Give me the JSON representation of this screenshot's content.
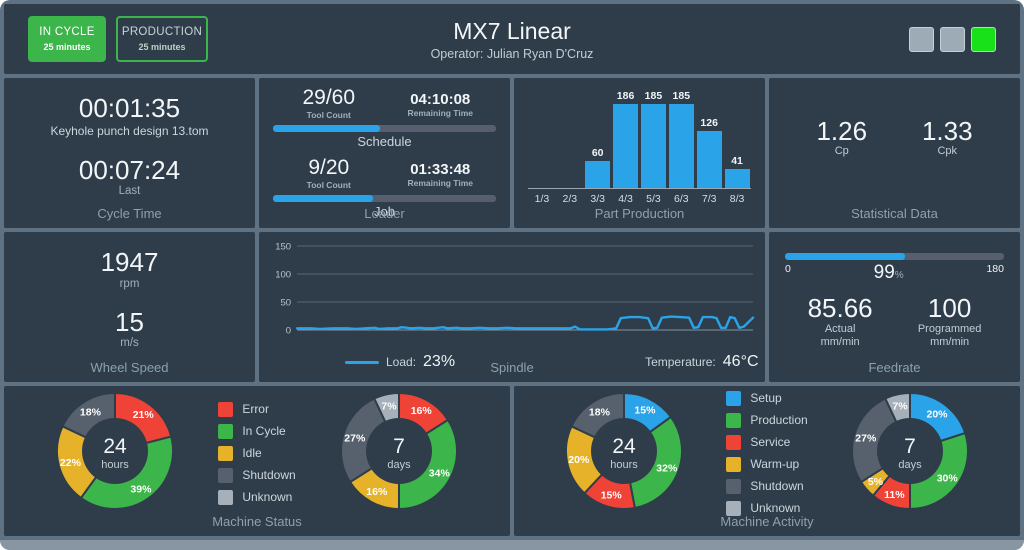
{
  "header": {
    "status_button": {
      "label": "IN CYCLE",
      "sublabel": "25 minutes"
    },
    "mode_button": {
      "label": "PRODUCTION",
      "sublabel": "25 minutes"
    },
    "title": "MX7 Linear",
    "operator": "Operator: Julian Ryan D'Cruz",
    "stack_lights": [
      {
        "name": "light-off-1",
        "color": "#9dabb6"
      },
      {
        "name": "light-off-2",
        "color": "#9dabb6"
      },
      {
        "name": "light-green",
        "color": "#19e119"
      }
    ]
  },
  "colors": {
    "accent_blue": "#2aa3e8",
    "green": "#3cb54a",
    "red": "#ef4337",
    "yellow": "#e5b22a",
    "slate": "#56616d",
    "light_gray": "#a5b0ba",
    "panel_bg": "#2f3d4a",
    "track": "#575f6e"
  },
  "cycle_time": {
    "title": "Cycle Time",
    "current": "00:01:35",
    "program": "Keyhole punch design 13.tom",
    "last": "00:07:24",
    "last_label": "Last"
  },
  "loader": {
    "title": "Loader",
    "tool_count_label": "Tool Count",
    "remaining_label": "Remaining Time",
    "schedule": {
      "tool_count": "29/60",
      "remaining": "04:10:08",
      "progress_pct": 48,
      "label": "Schedule"
    },
    "job": {
      "tool_count": "9/20",
      "remaining": "01:33:48",
      "progress_pct": 45,
      "label": "Job"
    }
  },
  "part_production": {
    "title": "Part Production",
    "chart": {
      "type": "bar",
      "categories": [
        "1/3",
        "2/3",
        "3/3",
        "4/3",
        "5/3",
        "6/3",
        "7/3",
        "8/3"
      ],
      "values": [
        0,
        0,
        60,
        186,
        185,
        185,
        126,
        41
      ],
      "ymax": 186,
      "bar_color": "#2aa3e8"
    }
  },
  "statistical_data": {
    "title": "Statistical Data",
    "cp": "1.26",
    "cp_label": "Cp",
    "cpk": "1.33",
    "cpk_label": "Cpk"
  },
  "wheel_speed": {
    "title": "Wheel Speed",
    "rpm": "1947",
    "rpm_label": "rpm",
    "speed": "15",
    "speed_label": "m/s"
  },
  "spindle": {
    "title": "Spindle",
    "legend": {
      "load_label": "Load:",
      "load_value": "23%",
      "temp_label": "Temperature:",
      "temp_value": "46°C"
    },
    "chart": {
      "type": "line",
      "ylim": [
        0,
        150
      ],
      "yticks": [
        0,
        50,
        100,
        150
      ],
      "line_color": "#2aa3e8",
      "points": [
        [
          0,
          3
        ],
        [
          3,
          3
        ],
        [
          5,
          2
        ],
        [
          8,
          3
        ],
        [
          11,
          3
        ],
        [
          13,
          2
        ],
        [
          15,
          3
        ],
        [
          17,
          4
        ],
        [
          18,
          2
        ],
        [
          20,
          3
        ],
        [
          22,
          3
        ],
        [
          23,
          5
        ],
        [
          25,
          3
        ],
        [
          27,
          4
        ],
        [
          28,
          3
        ],
        [
          30,
          3
        ],
        [
          32,
          5
        ],
        [
          33,
          3
        ],
        [
          35,
          4
        ],
        [
          36,
          3
        ],
        [
          38,
          3
        ],
        [
          40,
          4
        ],
        [
          42,
          3
        ],
        [
          44,
          3
        ],
        [
          46,
          4
        ],
        [
          48,
          3
        ],
        [
          50,
          3
        ],
        [
          52,
          3
        ],
        [
          54,
          3
        ],
        [
          56,
          3
        ],
        [
          58,
          3
        ],
        [
          60,
          3
        ],
        [
          61,
          6
        ],
        [
          62,
          1
        ],
        [
          64,
          1
        ],
        [
          66,
          1
        ],
        [
          68,
          1
        ],
        [
          69,
          2
        ],
        [
          70,
          3
        ],
        [
          71,
          21
        ],
        [
          73,
          23
        ],
        [
          75,
          23
        ],
        [
          77,
          21
        ],
        [
          78,
          3
        ],
        [
          79,
          4
        ],
        [
          80,
          22
        ],
        [
          82,
          24
        ],
        [
          84,
          23
        ],
        [
          86,
          22
        ],
        [
          87,
          4
        ],
        [
          88,
          5
        ],
        [
          89,
          23
        ],
        [
          91,
          23
        ],
        [
          92,
          21
        ],
        [
          93,
          4
        ],
        [
          94,
          4
        ],
        [
          95,
          23
        ],
        [
          96,
          21
        ],
        [
          97,
          4
        ],
        [
          98,
          6
        ],
        [
          100,
          22
        ]
      ]
    }
  },
  "feedrate": {
    "title": "Feedrate",
    "scale_min": "0",
    "scale_max": "180",
    "percent": "99",
    "percent_unit": "%",
    "progress_pct": 55,
    "actual": "85.66",
    "actual_label": "Actual",
    "actual_unit": "mm/min",
    "programmed": "100",
    "programmed_label": "Programmed",
    "programmed_unit": "mm/min"
  },
  "machine_status": {
    "title": "Machine Status",
    "legend": [
      {
        "label": "Error",
        "color": "#ef4337"
      },
      {
        "label": "In Cycle",
        "color": "#3cb54a"
      },
      {
        "label": "Idle",
        "color": "#e5b22a"
      },
      {
        "label": "Shutdown",
        "color": "#56616d"
      },
      {
        "label": "Unknown",
        "color": "#a5b0ba"
      }
    ],
    "donut_24h": {
      "type": "donut",
      "center_value": "24",
      "center_label": "hours",
      "slices": [
        {
          "label": "Error",
          "pct": 21,
          "color": "#ef4337"
        },
        {
          "label": "In Cycle",
          "pct": 39,
          "color": "#3cb54a"
        },
        {
          "label": "Idle",
          "pct": 22,
          "color": "#e5b22a"
        },
        {
          "label": "Shutdown",
          "pct": 18,
          "color": "#56616d"
        }
      ]
    },
    "donut_7d": {
      "type": "donut",
      "center_value": "7",
      "center_label": "days",
      "slices": [
        {
          "label": "Error",
          "pct": 16,
          "color": "#ef4337"
        },
        {
          "label": "In Cycle",
          "pct": 34,
          "color": "#3cb54a"
        },
        {
          "label": "Idle",
          "pct": 16,
          "color": "#e5b22a"
        },
        {
          "label": "Shutdown",
          "pct": 27,
          "color": "#56616d"
        },
        {
          "label": "Unknown",
          "pct": 7,
          "color": "#a5b0ba"
        }
      ]
    }
  },
  "machine_activity": {
    "title": "Machine Activity",
    "legend": [
      {
        "label": "Setup",
        "color": "#2aa3e8"
      },
      {
        "label": "Production",
        "color": "#3cb54a"
      },
      {
        "label": "Service",
        "color": "#ef4337"
      },
      {
        "label": "Warm-up",
        "color": "#e5b22a"
      },
      {
        "label": "Shutdown",
        "color": "#56616d"
      },
      {
        "label": "Unknown",
        "color": "#a5b0ba"
      }
    ],
    "donut_24h": {
      "type": "donut",
      "center_value": "24",
      "center_label": "hours",
      "slices": [
        {
          "label": "Setup",
          "pct": 15,
          "color": "#2aa3e8"
        },
        {
          "label": "Production",
          "pct": 32,
          "color": "#3cb54a"
        },
        {
          "label": "Service",
          "pct": 15,
          "color": "#ef4337"
        },
        {
          "label": "Warm-up",
          "pct": 20,
          "color": "#e5b22a"
        },
        {
          "label": "Shutdown",
          "pct": 18,
          "color": "#56616d"
        }
      ]
    },
    "donut_7d": {
      "type": "donut",
      "center_value": "7",
      "center_label": "days",
      "slices": [
        {
          "label": "Setup",
          "pct": 20,
          "color": "#2aa3e8"
        },
        {
          "label": "Production",
          "pct": 30,
          "color": "#3cb54a"
        },
        {
          "label": "Service",
          "pct": 11,
          "color": "#ef4337"
        },
        {
          "label": "Warm-up",
          "pct": 5,
          "color": "#e5b22a"
        },
        {
          "label": "Shutdown",
          "pct": 27,
          "color": "#56616d"
        },
        {
          "label": "Unknown",
          "pct": 7,
          "color": "#a5b0ba"
        }
      ]
    }
  }
}
